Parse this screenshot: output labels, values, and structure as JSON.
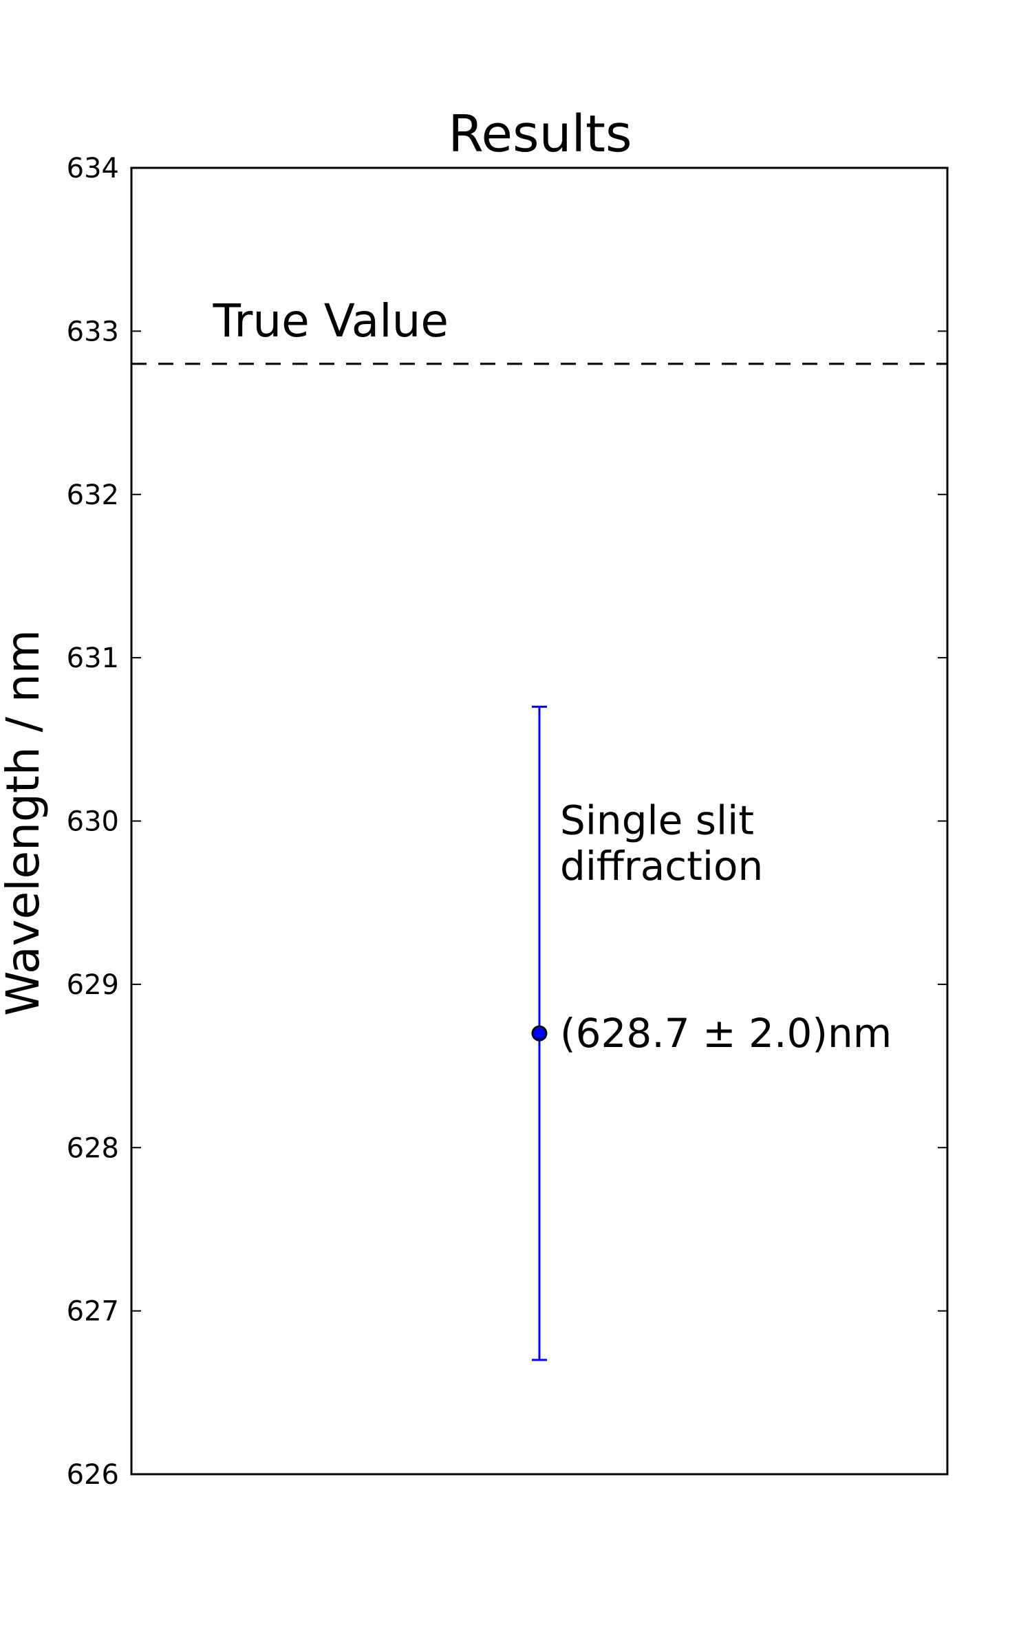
{
  "chart_data": {
    "type": "scatter",
    "title": "Results",
    "xlabel": "",
    "ylabel": "Wavelength / nm",
    "ylim": [
      626,
      634
    ],
    "yticks": [
      "626",
      "627",
      "628",
      "629",
      "630",
      "631",
      "632",
      "633",
      "634"
    ],
    "grid": false,
    "points": [
      {
        "y": 628.7,
        "yerr": 2.0
      }
    ],
    "reference_line": {
      "y": 632.8,
      "style": "dashed",
      "label": "True Value"
    },
    "annotations": {
      "method_line1": "Single slit",
      "method_line2": "diffraction",
      "result": "(628.7 ± 2.0)nm"
    },
    "colors": {
      "point": "#0000ff",
      "errorbar": "#0000ff",
      "reference": "#000000"
    }
  }
}
